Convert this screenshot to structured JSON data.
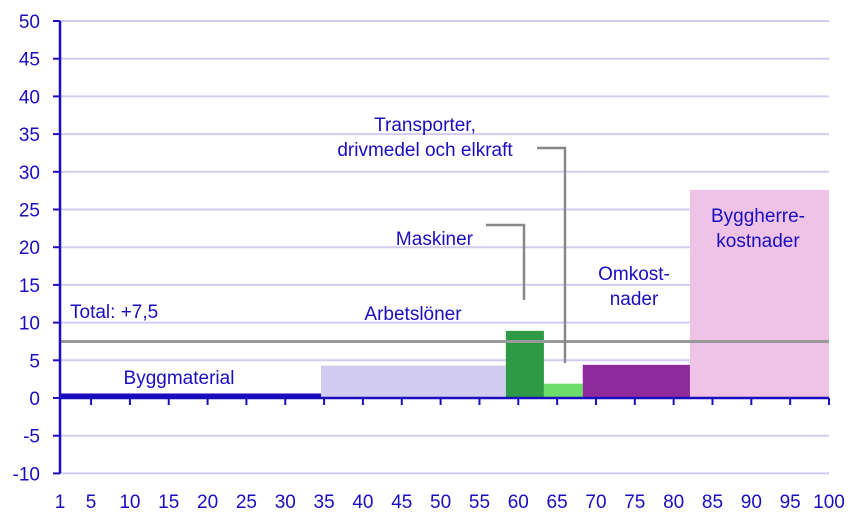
{
  "chart_data": {
    "type": "bar",
    "subtype": "variable-width bar (Marimekko-style contribution chart)",
    "title": "",
    "xlabel": "",
    "ylabel": "",
    "xlim": [
      1,
      100
    ],
    "ylim": [
      -10,
      50
    ],
    "grid": true,
    "legend": "none (direct labels)",
    "x_ticks": [
      1,
      5,
      10,
      15,
      20,
      25,
      30,
      35,
      40,
      45,
      50,
      55,
      60,
      65,
      70,
      75,
      80,
      85,
      90,
      95,
      100
    ],
    "y_ticks": [
      50,
      45,
      40,
      35,
      30,
      25,
      20,
      15,
      10,
      5,
      0,
      -5,
      -10
    ],
    "bars": [
      {
        "name": "Byggmaterial",
        "label": "Byggmaterial",
        "x_start": 1,
        "x_end": 34.6,
        "value": 0.6,
        "color": "#1a0dbf"
      },
      {
        "name": "Arbetslöner",
        "label": "Arbetslöner",
        "x_start": 34.6,
        "x_end": 58.4,
        "value": 4.3,
        "color": "#d2cdf0"
      },
      {
        "name": "Maskiner",
        "label": "Maskiner",
        "x_start": 58.4,
        "x_end": 63.3,
        "value": 8.9,
        "color": "#2f9a46"
      },
      {
        "name": "Transporter, drivmedel och elkraft",
        "label": "Transporter,\ndrivmedel och elkraft",
        "x_start": 63.3,
        "x_end": 68.3,
        "value": 1.9,
        "color": "#6ddd6a"
      },
      {
        "name": "Omkostnader",
        "label": "Omkost-\nnader",
        "x_start": 68.3,
        "x_end": 82.1,
        "value": 4.4,
        "color": "#8e2a9c"
      },
      {
        "name": "Byggherrekostnader",
        "label": "Byggherre-\nkostnader",
        "x_start": 82.1,
        "x_end": 100,
        "value": 27.6,
        "color": "#efc3e6"
      }
    ],
    "reference_line": {
      "label": "Total: +7,5",
      "value": 7.5,
      "color": "#999999"
    },
    "annotations": [
      {
        "text": "Total: +7,5"
      },
      {
        "text": "Byggmaterial"
      },
      {
        "text": "Arbetslöner"
      },
      {
        "text": "Maskiner"
      },
      {
        "text": "Transporter,"
      },
      {
        "text": "drivmedel och elkraft"
      },
      {
        "text": "Omkost-"
      },
      {
        "text": "nader"
      },
      {
        "text": "Byggherre-"
      },
      {
        "text": "kostnader"
      }
    ]
  },
  "colors": {
    "axis": "#1a0dbf",
    "grid": "#d2cdf0",
    "text": "#1a0dbf",
    "connector": "#888888"
  }
}
